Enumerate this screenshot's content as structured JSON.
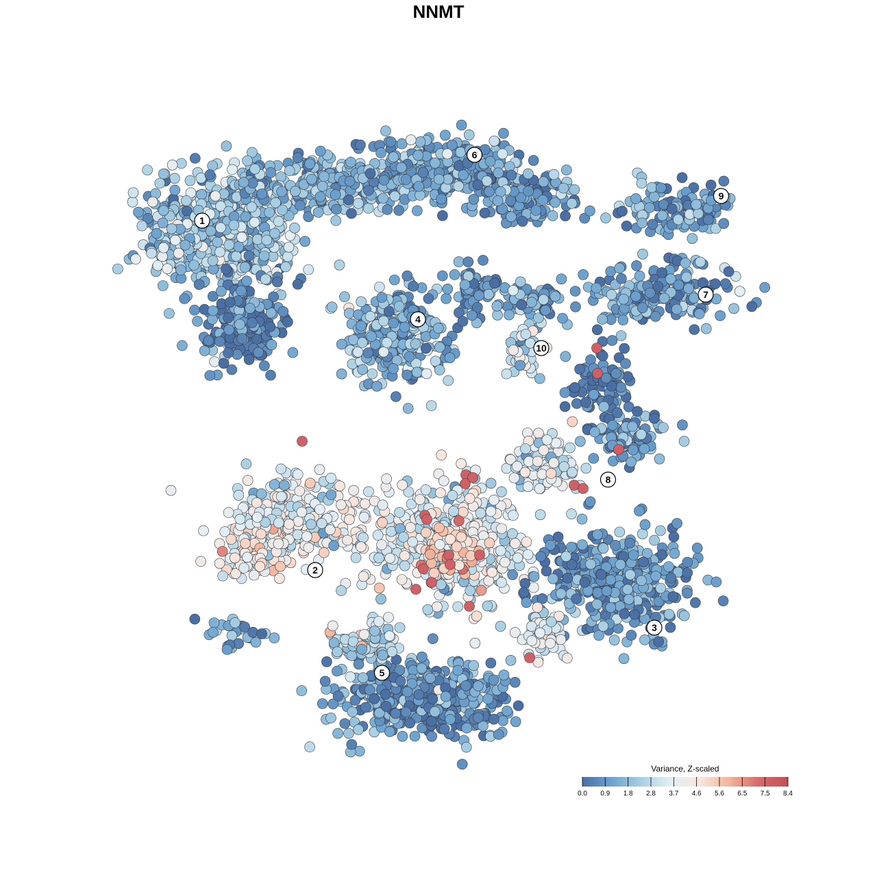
{
  "chart_data": {
    "type": "scatter",
    "title": "NNMT",
    "xlabel": "",
    "ylabel": "",
    "grid": false,
    "legend": {
      "title": "Variance, Z-scaled",
      "placement": "bottom-right",
      "ticks": [
        "0.0",
        "0.9",
        "1.8",
        "2.8",
        "3.7",
        "4.6",
        "5.6",
        "6.5",
        "7.5",
        "8.4"
      ],
      "range": [
        0.0,
        8.4
      ],
      "colors": [
        "#4a6fa5",
        "#6da3d0",
        "#a8cfe3",
        "#e3eef5",
        "#f9e6dd",
        "#f2b49a",
        "#d66a6a",
        "#c44d5b"
      ]
    },
    "clusters": [
      {
        "label": "1",
        "x": -4.6,
        "y": 5.3
      },
      {
        "label": "2",
        "x": -2.4,
        "y": -3.2
      },
      {
        "label": "3",
        "x": 4.2,
        "y": -4.6
      },
      {
        "label": "4",
        "x": -0.4,
        "y": 2.9
      },
      {
        "label": "5",
        "x": -1.1,
        "y": -5.7
      },
      {
        "label": "6",
        "x": 0.7,
        "y": 6.9
      },
      {
        "label": "7",
        "x": 5.2,
        "y": 3.5
      },
      {
        "label": "8",
        "x": 3.3,
        "y": -1.0
      },
      {
        "label": "9",
        "x": 5.5,
        "y": 5.9
      },
      {
        "label": "10",
        "x": 2.0,
        "y": 2.2
      }
    ]
  }
}
